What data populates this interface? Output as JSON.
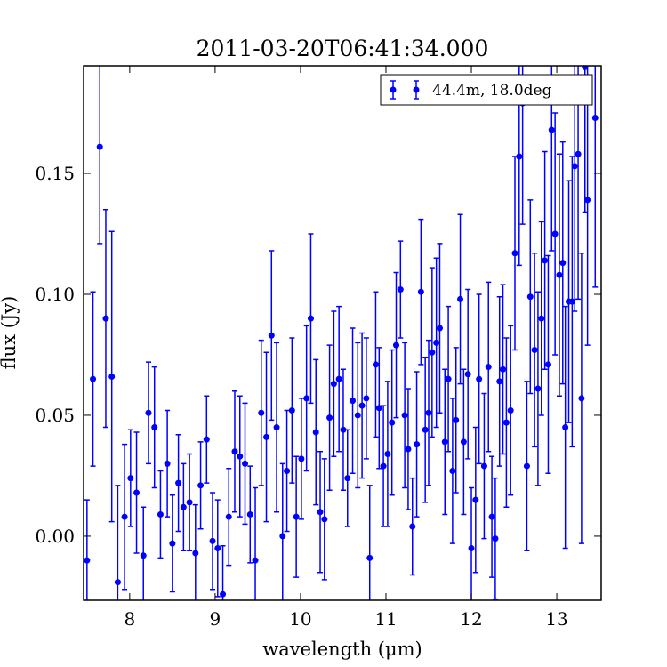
{
  "chart_data": {
    "type": "errorbar",
    "title": "2011-03-20T06:41:34.000",
    "x_label": "wavelength (μm)",
    "y_label": "flux (Jy)",
    "xlim": [
      7.46,
      13.52
    ],
    "ylim": [
      -0.0265,
      0.1945
    ],
    "xticks": [
      8,
      9,
      10,
      11,
      12,
      13
    ],
    "yticks": [
      {
        "value": 0,
        "label": "0.00"
      },
      0.05,
      {
        "value": 0.1,
        "label": "0.10"
      },
      0.15
    ],
    "legend": "upper right",
    "series": [
      {
        "name": "44.4m, 18.0deg",
        "color": "#0000ff",
        "x": [
          7.5,
          7.57,
          7.65,
          7.72,
          7.79,
          7.86,
          7.94,
          8.01,
          8.08,
          8.16,
          8.22,
          8.29,
          8.36,
          8.44,
          8.5,
          8.57,
          8.63,
          8.7,
          8.77,
          8.83,
          8.9,
          8.97,
          9.03,
          9.09,
          9.16,
          9.23,
          9.29,
          9.35,
          9.41,
          9.47,
          9.54,
          9.6,
          9.66,
          9.72,
          9.79,
          9.84,
          9.9,
          9.95,
          10.01,
          10.07,
          10.12,
          10.18,
          10.23,
          10.28,
          10.34,
          10.39,
          10.45,
          10.5,
          10.55,
          10.61,
          10.67,
          10.72,
          10.77,
          10.81,
          10.88,
          10.92,
          10.97,
          11.02,
          11.07,
          11.12,
          11.17,
          11.22,
          11.26,
          11.31,
          11.36,
          11.41,
          11.46,
          11.5,
          11.54,
          11.59,
          11.63,
          11.69,
          11.73,
          11.78,
          11.82,
          11.87,
          11.91,
          11.96,
          12.0,
          12.05,
          12.09,
          12.15,
          12.2,
          12.24,
          12.28,
          12.33,
          12.37,
          12.41,
          12.46,
          12.51,
          12.56,
          12.6,
          12.65,
          12.69,
          12.74,
          12.78,
          12.82,
          12.86,
          12.9,
          12.94,
          12.98,
          13.03,
          13.07,
          13.1,
          13.14,
          13.18,
          13.21,
          13.25,
          13.29,
          13.33,
          13.36,
          13.45
        ],
        "values": [
          -0.01,
          0.065,
          0.161,
          0.09,
          0.066,
          -0.019,
          0.008,
          0.024,
          0.018,
          -0.008,
          0.051,
          0.045,
          0.009,
          0.03,
          -0.003,
          0.022,
          0.012,
          0.014,
          -0.007,
          0.021,
          0.04,
          -0.002,
          -0.005,
          -0.024,
          0.008,
          0.035,
          0.033,
          0.03,
          0.009,
          -0.01,
          0.051,
          0.041,
          0.083,
          0.045,
          0.0,
          0.027,
          0.052,
          0.008,
          0.032,
          0.057,
          0.09,
          0.043,
          0.01,
          0.007,
          0.049,
          0.063,
          0.065,
          0.044,
          0.024,
          0.056,
          0.05,
          0.054,
          0.057,
          -0.009,
          0.071,
          0.053,
          0.029,
          0.034,
          0.047,
          0.079,
          0.102,
          0.05,
          0.036,
          0.004,
          0.038,
          0.101,
          0.044,
          0.051,
          0.076,
          0.08,
          0.086,
          0.039,
          0.065,
          0.027,
          0.048,
          0.098,
          0.039,
          0.067,
          -0.005,
          0.015,
          0.065,
          0.029,
          0.07,
          0.008,
          -0.001,
          0.064,
          0.069,
          0.047,
          0.052,
          0.117,
          0.157,
          0.179,
          0.029,
          0.099,
          0.077,
          0.061,
          0.09,
          0.114,
          0.071,
          0.168,
          0.125,
          0.108,
          0.113,
          0.045,
          0.097,
          0.097,
          0.153,
          0.158,
          0.057,
          0.194,
          0.139,
          0.173
        ],
        "errors": [
          0.025,
          0.036,
          0.04,
          0.045,
          0.06,
          0.04,
          0.03,
          0.02,
          0.025,
          0.02,
          0.021,
          0.025,
          0.018,
          0.022,
          0.02,
          0.02,
          0.018,
          0.02,
          0.02,
          0.018,
          0.018,
          0.02,
          0.02,
          0.02,
          0.02,
          0.025,
          0.025,
          0.025,
          0.02,
          0.03,
          0.03,
          0.035,
          0.035,
          0.035,
          0.03,
          0.025,
          0.03,
          0.025,
          0.025,
          0.03,
          0.035,
          0.03,
          0.025,
          0.025,
          0.03,
          0.03,
          0.03,
          0.025,
          0.02,
          0.03,
          0.03,
          0.03,
          0.025,
          0.03,
          0.03,
          0.025,
          0.025,
          0.03,
          0.03,
          0.03,
          0.02,
          0.03,
          0.025,
          0.02,
          0.03,
          0.03,
          0.03,
          0.03,
          0.035,
          0.035,
          0.035,
          0.03,
          0.03,
          0.03,
          0.03,
          0.035,
          0.03,
          0.035,
          0.025,
          0.03,
          0.035,
          0.03,
          0.035,
          0.025,
          0.025,
          0.035,
          0.035,
          0.035,
          0.035,
          0.04,
          0.045,
          0.05,
          0.035,
          0.04,
          0.04,
          0.04,
          0.04,
          0.045,
          0.045,
          0.05,
          0.05,
          0.05,
          0.05,
          0.05,
          0.05,
          0.06,
          0.06,
          0.06,
          0.06,
          0.06,
          0.06,
          0.07
        ]
      }
    ]
  }
}
